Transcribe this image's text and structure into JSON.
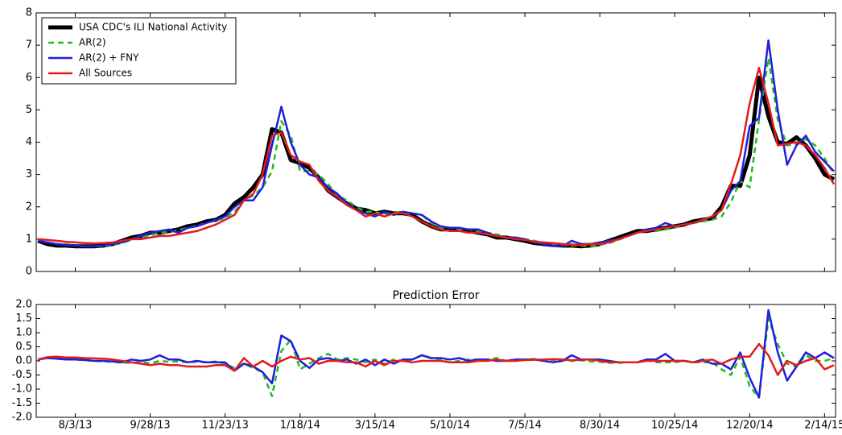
{
  "chart_data": [
    {
      "type": "line",
      "x": [
        "7/6/13",
        "7/13/13",
        "7/20/13",
        "7/27/13",
        "8/3/13",
        "8/10/13",
        "8/17/13",
        "8/24/13",
        "8/31/13",
        "9/7/13",
        "9/14/13",
        "9/21/13",
        "9/28/13",
        "10/5/13",
        "10/12/13",
        "10/19/13",
        "10/26/13",
        "11/2/13",
        "11/9/13",
        "11/16/13",
        "11/23/13",
        "11/30/13",
        "12/7/13",
        "12/14/13",
        "12/21/13",
        "12/28/13",
        "1/4/14",
        "1/11/14",
        "1/18/14",
        "1/25/14",
        "2/1/14",
        "2/8/14",
        "2/15/14",
        "2/22/14",
        "3/1/14",
        "3/8/14",
        "3/15/14",
        "3/22/14",
        "3/29/14",
        "4/5/14",
        "4/12/14",
        "4/19/14",
        "4/26/14",
        "5/3/14",
        "5/10/14",
        "5/17/14",
        "5/24/14",
        "5/31/14",
        "6/7/14",
        "6/14/14",
        "6/21/14",
        "6/28/14",
        "7/5/14",
        "7/12/14",
        "7/19/14",
        "7/26/14",
        "8/2/14",
        "8/9/14",
        "8/16/14",
        "8/23/14",
        "8/30/14",
        "9/6/14",
        "9/13/14",
        "9/20/14",
        "9/27/14",
        "10/4/14",
        "10/11/14",
        "10/18/14",
        "10/25/14",
        "11/1/14",
        "11/8/14",
        "11/15/14",
        "11/22/14",
        "11/29/14",
        "12/6/14",
        "12/13/14",
        "12/20/14",
        "12/27/14",
        "1/3/15",
        "1/10/15",
        "1/17/15",
        "1/24/15",
        "1/31/15",
        "2/7/15",
        "2/14/15",
        "2/21/15"
      ],
      "ylim": [
        0,
        8
      ],
      "yticks": [
        0,
        1,
        2,
        3,
        4,
        5,
        6,
        7,
        8
      ],
      "legend": "upper left",
      "series": [
        {
          "name": "USA CDC's ILI National Activity",
          "color": "#000000",
          "values": [
            0.95,
            0.85,
            0.8,
            0.8,
            0.78,
            0.78,
            0.78,
            0.8,
            0.85,
            0.95,
            1.05,
            1.1,
            1.2,
            1.2,
            1.25,
            1.3,
            1.4,
            1.45,
            1.55,
            1.6,
            1.75,
            2.1,
            2.3,
            2.6,
            3.0,
            4.4,
            4.3,
            3.45,
            3.35,
            3.2,
            2.9,
            2.5,
            2.3,
            2.1,
            1.95,
            1.9,
            1.8,
            1.85,
            1.8,
            1.8,
            1.75,
            1.55,
            1.4,
            1.3,
            1.3,
            1.3,
            1.25,
            1.2,
            1.15,
            1.05,
            1.05,
            1.0,
            0.95,
            0.88,
            0.85,
            0.82,
            0.8,
            0.8,
            0.78,
            0.8,
            0.85,
            0.95,
            1.05,
            1.15,
            1.25,
            1.25,
            1.3,
            1.35,
            1.4,
            1.45,
            1.55,
            1.6,
            1.65,
            2.0,
            2.65,
            2.65,
            3.6,
            6.0,
            4.8,
            4.0,
            3.95,
            4.15,
            3.9,
            3.5,
            3.0,
            2.85
          ]
        },
        {
          "name": "AR(2)",
          "color": "#22bb22",
          "values": [
            0.95,
            0.9,
            0.85,
            0.82,
            0.8,
            0.78,
            0.78,
            0.78,
            0.82,
            0.88,
            0.98,
            1.05,
            1.12,
            1.2,
            1.22,
            1.28,
            1.35,
            1.42,
            1.5,
            1.58,
            1.65,
            1.85,
            2.2,
            2.35,
            2.6,
            3.1,
            4.65,
            4.2,
            3.1,
            3.1,
            3.0,
            2.7,
            2.35,
            2.2,
            2.0,
            1.85,
            1.85,
            1.75,
            1.85,
            1.8,
            1.8,
            1.75,
            1.5,
            1.35,
            1.25,
            1.3,
            1.3,
            1.25,
            1.2,
            1.15,
            1.05,
            1.05,
            1.0,
            0.95,
            0.88,
            0.85,
            0.82,
            0.8,
            0.8,
            0.78,
            0.82,
            0.88,
            0.98,
            1.1,
            1.2,
            1.3,
            1.25,
            1.3,
            1.35,
            1.45,
            1.5,
            1.55,
            1.6,
            1.7,
            2.15,
            2.8,
            2.6,
            4.7,
            6.6,
            4.7,
            3.9,
            3.95,
            4.1,
            3.9,
            3.5,
            3.0
          ]
        },
        {
          "name": "AR(2) + FNY",
          "color": "#1f1fdd",
          "values": [
            0.95,
            0.9,
            0.85,
            0.82,
            0.8,
            0.78,
            0.78,
            0.8,
            0.85,
            0.9,
            1.0,
            1.1,
            1.2,
            1.25,
            1.3,
            1.2,
            1.35,
            1.4,
            1.5,
            1.6,
            1.7,
            2.0,
            2.2,
            2.2,
            2.6,
            3.9,
            5.1,
            4.0,
            3.3,
            3.0,
            2.9,
            2.6,
            2.4,
            2.1,
            1.9,
            1.8,
            1.7,
            1.85,
            1.75,
            1.85,
            1.8,
            1.75,
            1.55,
            1.4,
            1.35,
            1.35,
            1.3,
            1.3,
            1.2,
            1.1,
            1.05,
            1.05,
            1.0,
            0.9,
            0.85,
            0.8,
            0.78,
            0.95,
            0.85,
            0.85,
            0.9,
            0.95,
            1.0,
            1.1,
            1.2,
            1.3,
            1.35,
            1.5,
            1.4,
            1.45,
            1.5,
            1.6,
            1.7,
            1.9,
            2.5,
            2.8,
            4.5,
            4.75,
            7.15,
            5.0,
            3.3,
            3.9,
            4.2,
            3.7,
            3.4,
            3.1
          ]
        },
        {
          "name": "All Sources",
          "color": "#e41a1c",
          "values": [
            1.0,
            0.98,
            0.95,
            0.92,
            0.9,
            0.88,
            0.87,
            0.88,
            0.9,
            0.95,
            1.0,
            1.0,
            1.05,
            1.1,
            1.1,
            1.15,
            1.2,
            1.25,
            1.35,
            1.45,
            1.6,
            1.75,
            2.2,
            2.4,
            3.0,
            4.2,
            4.3,
            3.6,
            3.4,
            3.3,
            2.8,
            2.5,
            2.3,
            2.05,
            1.9,
            1.7,
            1.8,
            1.7,
            1.8,
            1.8,
            1.7,
            1.55,
            1.4,
            1.3,
            1.25,
            1.25,
            1.2,
            1.2,
            1.15,
            1.1,
            1.05,
            1.0,
            0.98,
            0.92,
            0.9,
            0.88,
            0.85,
            0.82,
            0.82,
            0.85,
            0.85,
            0.9,
            1.0,
            1.1,
            1.2,
            1.25,
            1.3,
            1.35,
            1.4,
            1.45,
            1.5,
            1.6,
            1.7,
            1.9,
            2.7,
            3.6,
            5.2,
            6.3,
            5.2,
            3.9,
            3.95,
            4.0,
            3.9,
            3.6,
            3.2,
            2.7
          ]
        }
      ]
    },
    {
      "type": "line",
      "title": "Prediction Error",
      "x": [
        "7/6/13",
        "7/13/13",
        "7/20/13",
        "7/27/13",
        "8/3/13",
        "8/10/13",
        "8/17/13",
        "8/24/13",
        "8/31/13",
        "9/7/13",
        "9/14/13",
        "9/21/13",
        "9/28/13",
        "10/5/13",
        "10/12/13",
        "10/19/13",
        "10/26/13",
        "11/2/13",
        "11/9/13",
        "11/16/13",
        "11/23/13",
        "11/30/13",
        "12/7/13",
        "12/14/13",
        "12/21/13",
        "12/28/13",
        "1/4/14",
        "1/11/14",
        "1/18/14",
        "1/25/14",
        "2/1/14",
        "2/8/14",
        "2/15/14",
        "2/22/14",
        "3/1/14",
        "3/8/14",
        "3/15/14",
        "3/22/14",
        "3/29/14",
        "4/5/14",
        "4/12/14",
        "4/19/14",
        "4/26/14",
        "5/3/14",
        "5/10/14",
        "5/17/14",
        "5/24/14",
        "5/31/14",
        "6/7/14",
        "6/14/14",
        "6/21/14",
        "6/28/14",
        "7/5/14",
        "7/12/14",
        "7/19/14",
        "7/26/14",
        "8/2/14",
        "8/9/14",
        "8/16/14",
        "8/23/14",
        "8/30/14",
        "9/6/14",
        "9/13/14",
        "9/20/14",
        "9/27/14",
        "10/4/14",
        "10/11/14",
        "10/18/14",
        "10/25/14",
        "11/1/14",
        "11/8/14",
        "11/15/14",
        "11/22/14",
        "11/29/14",
        "12/6/14",
        "12/13/14",
        "12/20/14",
        "12/27/14",
        "1/3/15",
        "1/10/15",
        "1/17/15",
        "1/24/15",
        "1/31/15",
        "2/7/15",
        "2/14/15",
        "2/21/15"
      ],
      "xticks": [
        "8/3/13",
        "9/28/13",
        "11/23/13",
        "1/18/14",
        "3/15/14",
        "5/10/14",
        "7/5/14",
        "8/30/14",
        "10/25/14",
        "12/20/14",
        "2/14/15"
      ],
      "ylim": [
        -2,
        2
      ],
      "yticks": [
        {
          "value": -2,
          "label": "-2.0"
        },
        -1.5,
        {
          "value": -1,
          "label": "-1.0"
        },
        -0.5,
        {
          "value": 0,
          "label": "0.0"
        },
        0.5,
        {
          "value": 1,
          "label": "1.0"
        },
        1.5,
        {
          "value": 2,
          "label": "2.0"
        }
      ],
      "series": [
        {
          "color": "#22bb22",
          "values": [
            0.05,
            0.1,
            0.08,
            0.05,
            0.05,
            0.03,
            0.0,
            -0.02,
            -0.03,
            -0.07,
            -0.07,
            -0.05,
            -0.08,
            0.0,
            -0.03,
            -0.02,
            -0.05,
            -0.03,
            -0.05,
            -0.02,
            -0.1,
            -0.25,
            -0.1,
            -0.25,
            -0.4,
            -1.25,
            0.35,
            0.75,
            -0.3,
            -0.1,
            0.1,
            0.25,
            0.05,
            0.1,
            0.05,
            -0.05,
            0.05,
            -0.1,
            0.05,
            0.0,
            0.05,
            0.2,
            0.1,
            0.05,
            -0.05,
            0.0,
            0.05,
            0.05,
            0.05,
            0.1,
            0.0,
            0.05,
            0.05,
            0.07,
            0.03,
            0.03,
            0.02,
            0.0,
            0.02,
            -0.02,
            -0.03,
            -0.07,
            -0.07,
            -0.05,
            -0.05,
            0.05,
            -0.05,
            -0.05,
            -0.05,
            0.0,
            -0.05,
            -0.05,
            -0.05,
            -0.3,
            -0.5,
            0.15,
            -0.9,
            -1.3,
            1.5,
            0.6,
            -0.1,
            -0.2,
            0.2,
            0.0,
            0.0,
            0.1
          ]
        },
        {
          "color": "#1f1fdd",
          "values": [
            0.05,
            0.1,
            0.08,
            0.05,
            0.05,
            0.03,
            0.0,
            0.0,
            -0.02,
            -0.05,
            0.05,
            0.0,
            0.05,
            0.2,
            0.05,
            0.05,
            -0.05,
            0.0,
            -0.05,
            -0.05,
            -0.05,
            -0.35,
            -0.1,
            -0.2,
            -0.4,
            -0.8,
            0.9,
            0.7,
            0.0,
            -0.25,
            0.05,
            0.1,
            0.0,
            0.05,
            -0.1,
            0.05,
            -0.15,
            0.05,
            -0.1,
            0.05,
            0.05,
            0.2,
            0.1,
            0.1,
            0.05,
            0.1,
            0.0,
            0.05,
            0.05,
            0.0,
            0.0,
            0.05,
            0.05,
            0.05,
            0.0,
            -0.05,
            0.0,
            0.2,
            0.05,
            0.05,
            0.05,
            0.0,
            -0.05,
            -0.05,
            -0.05,
            0.05,
            0.05,
            0.25,
            0.0,
            0.0,
            -0.05,
            0.05,
            -0.1,
            -0.1,
            -0.3,
            0.3,
            -0.6,
            -1.3,
            1.8,
            0.3,
            -0.7,
            -0.2,
            0.3,
            0.1,
            0.3,
            0.1
          ]
        },
        {
          "color": "#e41a1c",
          "values": [
            0.05,
            0.13,
            0.15,
            0.12,
            0.12,
            0.1,
            0.09,
            0.08,
            0.05,
            0.0,
            -0.05,
            -0.1,
            -0.15,
            -0.1,
            -0.15,
            -0.15,
            -0.2,
            -0.2,
            -0.2,
            -0.15,
            -0.15,
            -0.35,
            0.1,
            -0.2,
            0.0,
            -0.2,
            0.0,
            0.15,
            0.05,
            0.1,
            -0.1,
            0.0,
            0.0,
            -0.05,
            -0.05,
            -0.2,
            0.0,
            -0.15,
            0.0,
            0.0,
            -0.05,
            0.0,
            0.0,
            0.0,
            -0.05,
            -0.05,
            -0.05,
            0.0,
            0.0,
            0.05,
            0.0,
            0.0,
            0.03,
            0.04,
            0.05,
            0.06,
            0.05,
            0.02,
            0.04,
            0.05,
            0.0,
            -0.05,
            -0.05,
            -0.05,
            -0.05,
            0.0,
            0.0,
            0.0,
            0.0,
            0.0,
            -0.05,
            0.0,
            0.05,
            -0.1,
            0.05,
            0.15,
            0.15,
            0.6,
            0.2,
            -0.5,
            0.0,
            -0.15,
            0.0,
            0.1,
            -0.3,
            -0.15
          ]
        }
      ]
    }
  ]
}
